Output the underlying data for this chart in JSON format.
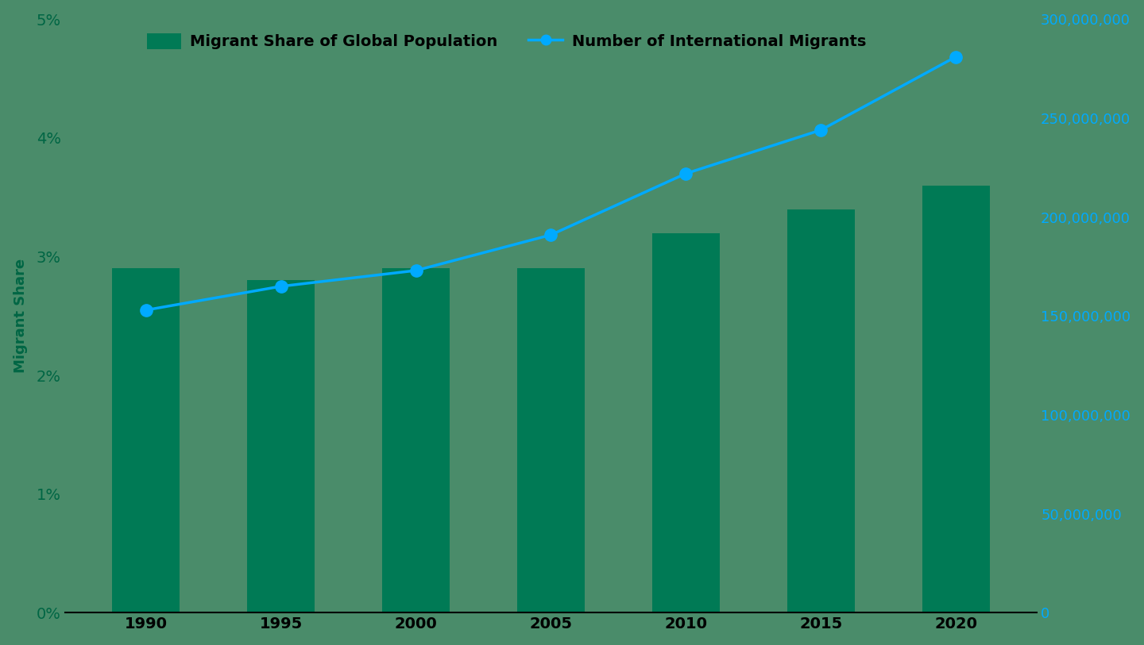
{
  "years": [
    1990,
    1995,
    2000,
    2005,
    2010,
    2015,
    2020
  ],
  "migrant_share": [
    0.029,
    0.028,
    0.029,
    0.029,
    0.032,
    0.034,
    0.036
  ],
  "migrant_count": [
    153000000,
    165000000,
    173000000,
    191000000,
    222000000,
    244000000,
    281000000
  ],
  "bar_color": "#007a55",
  "line_color": "#00aaff",
  "background_color": "#4a8c6a",
  "left_axis_color": "#006644",
  "right_axis_color": "#00aaff",
  "tick_label_color_left": "#005533",
  "tick_label_color_x": "#000000",
  "left_label": "Migrant Share",
  "legend_bar": "Migrant Share of Global Population",
  "legend_line": "Number of International Migrants",
  "ylim_left": [
    0,
    0.05
  ],
  "ylim_right": [
    0,
    300000000
  ],
  "yticks_left": [
    0,
    0.01,
    0.02,
    0.03,
    0.04,
    0.05
  ],
  "yticks_right": [
    0,
    50000000,
    100000000,
    150000000,
    200000000,
    250000000,
    300000000
  ],
  "bar_width": 2.5,
  "xlim": [
    1987,
    2023
  ]
}
